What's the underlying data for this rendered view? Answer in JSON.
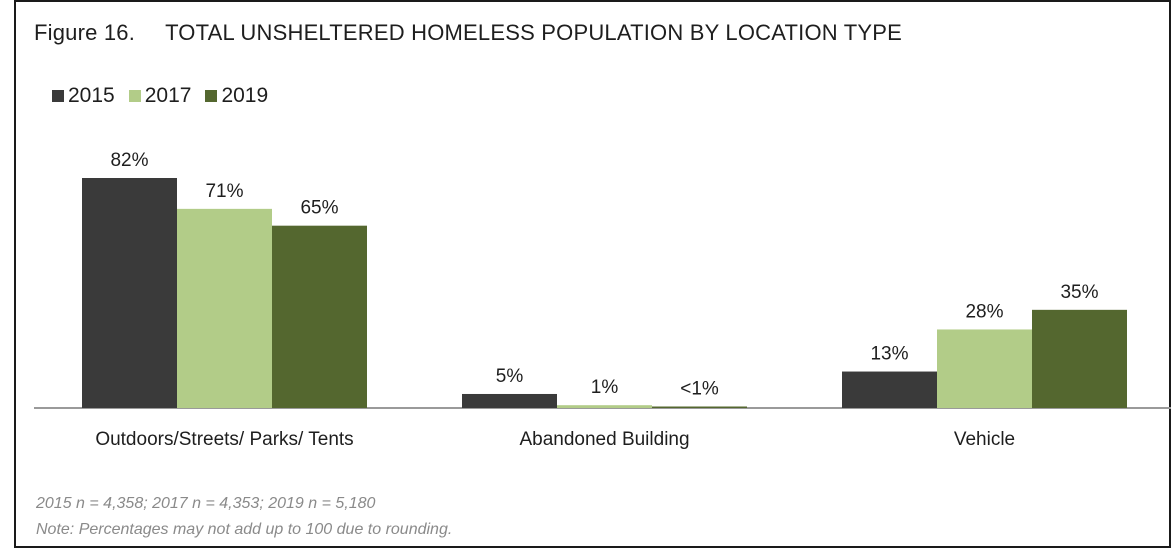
{
  "figure": {
    "number": "Figure 16.",
    "title": "TOTAL UNSHELTERED HOMELESS POPULATION BY LOCATION TYPE"
  },
  "colors": {
    "series_2015": "#3a3a3a",
    "series_2017": "#b2cc88",
    "series_2019": "#54672f",
    "baseline": "#9a9a9a"
  },
  "chart_data": {
    "type": "bar",
    "title": "TOTAL UNSHELTERED HOMELESS POPULATION BY LOCATION TYPE",
    "categories": [
      "Outdoors/Streets/ Parks/ Tents",
      "Abandoned Building",
      "Vehicle"
    ],
    "series": [
      {
        "name": "2015",
        "values": [
          82,
          5,
          13
        ],
        "labels": [
          "82%",
          "5%",
          "13%"
        ],
        "color": "#3a3a3a"
      },
      {
        "name": "2017",
        "values": [
          71,
          1,
          28
        ],
        "labels": [
          "71%",
          "1%",
          "28%"
        ],
        "color": "#b2cc88"
      },
      {
        "name": "2019",
        "values": [
          65,
          0.5,
          35
        ],
        "labels": [
          "65%",
          "<1%",
          "35%"
        ],
        "color": "#54672f"
      }
    ],
    "ylim": [
      0,
      82
    ],
    "xlabel": "",
    "ylabel": "",
    "grid": false,
    "legend": "top-left"
  },
  "notes": {
    "sample_sizes": "2015 n = 4,358; 2017 n = 4,353; 2019 n = 5,180",
    "rounding": "Note: Percentages may not add up to 100 due to rounding."
  }
}
